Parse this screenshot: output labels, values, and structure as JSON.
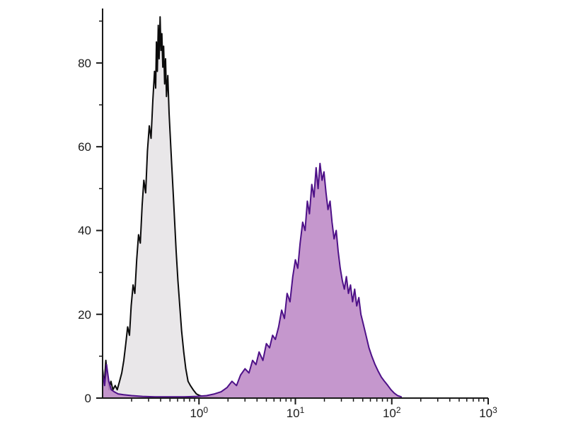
{
  "chart_data": {
    "type": "area",
    "subtype": "flow-cytometry-histogram-overlay",
    "title": "",
    "xlabel": "",
    "ylabel": "",
    "x_scale": "log",
    "y_scale": "linear",
    "xlim": [
      0.1,
      1000
    ],
    "ylim": [
      0,
      93
    ],
    "grid": false,
    "legend": "none",
    "axis_color": "#1a1a1a",
    "background_color": "#ffffff",
    "x_ticks": [
      {
        "text": "10",
        "exp": "0",
        "value": 1
      },
      {
        "text": "10",
        "exp": "1",
        "value": 10
      },
      {
        "text": "10",
        "exp": "2",
        "value": 100
      },
      {
        "text": "10",
        "exp": "3",
        "value": 1000
      }
    ],
    "y_ticks": [
      0,
      20,
      40,
      60,
      80
    ],
    "y_minor_ticks": [
      10,
      30,
      50,
      70,
      90
    ],
    "series": [
      {
        "name": "gray-histogram",
        "label": "gray filled histogram (left peak)",
        "fill": "#e9e7e9",
        "fill_opacity": 1,
        "stroke": "#0b0b0b",
        "stroke_width": 2,
        "peak_x": 0.4,
        "peak_y": 91,
        "points": [
          [
            0.1,
            7
          ],
          [
            0.104,
            3
          ],
          [
            0.108,
            9
          ],
          [
            0.112,
            5
          ],
          [
            0.117,
            2
          ],
          [
            0.122,
            4
          ],
          [
            0.128,
            2
          ],
          [
            0.135,
            3
          ],
          [
            0.142,
            2
          ],
          [
            0.15,
            4
          ],
          [
            0.158,
            6
          ],
          [
            0.166,
            9
          ],
          [
            0.174,
            13
          ],
          [
            0.182,
            17
          ],
          [
            0.19,
            15
          ],
          [
            0.198,
            22
          ],
          [
            0.207,
            27
          ],
          [
            0.216,
            25
          ],
          [
            0.226,
            33
          ],
          [
            0.236,
            39
          ],
          [
            0.246,
            37
          ],
          [
            0.257,
            46
          ],
          [
            0.268,
            52
          ],
          [
            0.28,
            49
          ],
          [
            0.292,
            59
          ],
          [
            0.305,
            65
          ],
          [
            0.318,
            62
          ],
          [
            0.332,
            71
          ],
          [
            0.346,
            78
          ],
          [
            0.355,
            74
          ],
          [
            0.362,
            85
          ],
          [
            0.37,
            78
          ],
          [
            0.378,
            89
          ],
          [
            0.386,
            81
          ],
          [
            0.395,
            91
          ],
          [
            0.403,
            83
          ],
          [
            0.412,
            87
          ],
          [
            0.421,
            79
          ],
          [
            0.43,
            84
          ],
          [
            0.44,
            75
          ],
          [
            0.45,
            81
          ],
          [
            0.46,
            72
          ],
          [
            0.475,
            77
          ],
          [
            0.49,
            68
          ],
          [
            0.505,
            62
          ],
          [
            0.52,
            56
          ],
          [
            0.54,
            49
          ],
          [
            0.56,
            42
          ],
          [
            0.58,
            35
          ],
          [
            0.605,
            28
          ],
          [
            0.632,
            22
          ],
          [
            0.66,
            16
          ],
          [
            0.695,
            11
          ],
          [
            0.73,
            7
          ],
          [
            0.77,
            4
          ],
          [
            0.815,
            3
          ],
          [
            0.87,
            2
          ],
          [
            0.94,
            1
          ],
          [
            1.02,
            0.6
          ],
          [
            1.15,
            0.3
          ],
          [
            1.35,
            0.2
          ],
          [
            1.8,
            0.1
          ]
        ]
      },
      {
        "name": "purple-histogram",
        "label": "purple filled histogram (right peak)",
        "fill": "#bf8cc8",
        "fill_opacity": 0.9,
        "stroke": "#4e1188",
        "stroke_width": 2,
        "peak_x": 18,
        "peak_y": 56,
        "points": [
          [
            0.1,
            6
          ],
          [
            0.105,
            3
          ],
          [
            0.11,
            8
          ],
          [
            0.116,
            4
          ],
          [
            0.123,
            2
          ],
          [
            0.132,
            1.5
          ],
          [
            0.145,
            1
          ],
          [
            0.165,
            0.8
          ],
          [
            0.2,
            0.6
          ],
          [
            0.26,
            0.4
          ],
          [
            0.35,
            0.3
          ],
          [
            0.5,
            0.3
          ],
          [
            0.7,
            0.3
          ],
          [
            0.95,
            0.4
          ],
          [
            1.2,
            0.6
          ],
          [
            1.45,
            1
          ],
          [
            1.7,
            1.5
          ],
          [
            1.95,
            2.5
          ],
          [
            2.2,
            4
          ],
          [
            2.45,
            3
          ],
          [
            2.7,
            5.5
          ],
          [
            3.0,
            7
          ],
          [
            3.3,
            6
          ],
          [
            3.6,
            9
          ],
          [
            3.9,
            8
          ],
          [
            4.2,
            11
          ],
          [
            4.6,
            9
          ],
          [
            5.0,
            13
          ],
          [
            5.4,
            12
          ],
          [
            5.8,
            15
          ],
          [
            6.2,
            14
          ],
          [
            6.7,
            17
          ],
          [
            7.2,
            21
          ],
          [
            7.7,
            19
          ],
          [
            8.2,
            25
          ],
          [
            8.8,
            23
          ],
          [
            9.4,
            29
          ],
          [
            10.0,
            33
          ],
          [
            10.6,
            31
          ],
          [
            11.2,
            37
          ],
          [
            11.9,
            42
          ],
          [
            12.6,
            40
          ],
          [
            13.3,
            47
          ],
          [
            14.0,
            44
          ],
          [
            14.8,
            51
          ],
          [
            15.6,
            48
          ],
          [
            16.4,
            55
          ],
          [
            17.2,
            50
          ],
          [
            18.0,
            56
          ],
          [
            18.9,
            52
          ],
          [
            19.8,
            54
          ],
          [
            20.8,
            49
          ],
          [
            21.8,
            45
          ],
          [
            22.9,
            47
          ],
          [
            24.0,
            42
          ],
          [
            25.2,
            38
          ],
          [
            26.5,
            40
          ],
          [
            27.8,
            35
          ],
          [
            29.2,
            31
          ],
          [
            30.7,
            28
          ],
          [
            32.2,
            26
          ],
          [
            33.8,
            29
          ],
          [
            35.5,
            25
          ],
          [
            37.3,
            27
          ],
          [
            39.2,
            23
          ],
          [
            41.2,
            26
          ],
          [
            43.3,
            22
          ],
          [
            45.5,
            24
          ],
          [
            47.8,
            20
          ],
          [
            50.2,
            18
          ],
          [
            54,
            15
          ],
          [
            58,
            12
          ],
          [
            62,
            10
          ],
          [
            67,
            8
          ],
          [
            72,
            6.5
          ],
          [
            78,
            5
          ],
          [
            84,
            4
          ],
          [
            91,
            3
          ],
          [
            98,
            2
          ],
          [
            106,
            1.2
          ],
          [
            115,
            0.6
          ],
          [
            125,
            0.3
          ]
        ]
      }
    ]
  }
}
